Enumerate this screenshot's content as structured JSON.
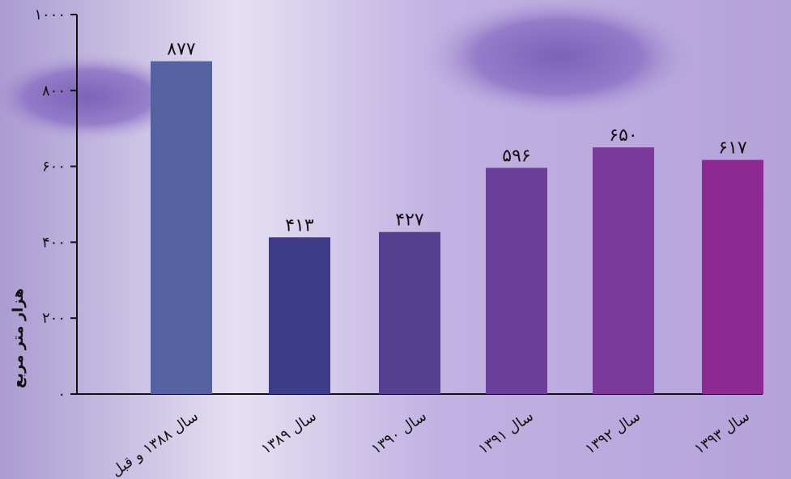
{
  "chart_data": {
    "type": "bar",
    "y_label": "هزار متر مربع",
    "categories": [
      "سال ۱۳۸۸ و قبل",
      "سال ۱۳۸۹",
      "سال ۱۳۹۰",
      "سال ۱۳۹۱",
      "سال ۱۳۹۲",
      "سال ۱۳۹۳"
    ],
    "values": [
      877,
      413,
      427,
      596,
      650,
      617
    ],
    "value_labels": [
      "۸۷۷",
      "۴۱۳",
      "۴۲۷",
      "۵۹۶",
      "۶۵۰",
      "۶۱۷"
    ],
    "colors": [
      "#5661a2",
      "#3e3b89",
      "#553f8f",
      "#6a3e99",
      "#7b3a9b",
      "#8e2991"
    ],
    "ylim": [
      0,
      1000
    ],
    "yticks": [
      {
        "value": 0,
        "label": "۰"
      },
      {
        "value": 200,
        "label": "۲۰۰"
      },
      {
        "value": 400,
        "label": "۴۰۰"
      },
      {
        "value": 600,
        "label": "۶۰۰"
      },
      {
        "value": 800,
        "label": "۸۰۰"
      },
      {
        "value": 1000,
        "label": "۱۰۰۰"
      }
    ]
  }
}
